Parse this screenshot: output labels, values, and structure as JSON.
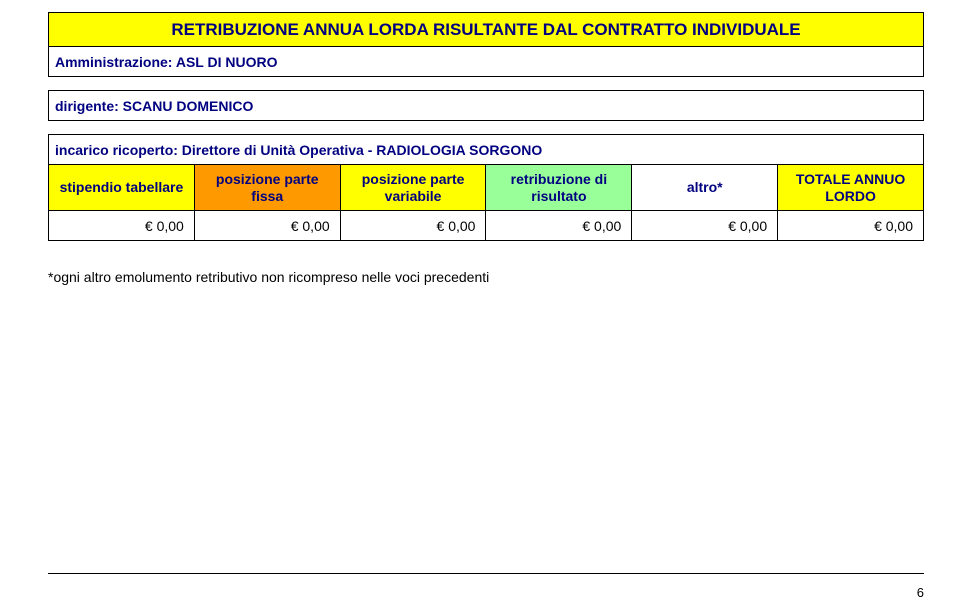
{
  "title": "RETRIBUZIONE ANNUA LORDA RISULTANTE DAL CONTRATTO INDIVIDUALE",
  "admin_label": "Amministrazione: ASL DI NUORO",
  "dirigente_label": "dirigente: SCANU DOMENICO",
  "incarico_label": "incarico ricoperto: Direttore di Unità Operativa - RADIOLOGIA SORGONO",
  "columns": [
    "stipendio tabellare",
    "posizione parte fissa",
    "posizione parte variabile",
    "retribuzione di risultato",
    "altro*",
    "TOTALE ANNUO LORDO"
  ],
  "row": [
    "€ 0,00",
    "€ 0,00",
    "€ 0,00",
    "€ 0,00",
    "€ 0,00",
    "€ 0,00"
  ],
  "footnote": "*ogni altro emolumento retributivo non ricompreso nelle voci precedenti",
  "page_number": "6",
  "colors": {
    "yellow": "#ffff00",
    "orange": "#ff9900",
    "green": "#99ff99",
    "navy": "#000080"
  }
}
